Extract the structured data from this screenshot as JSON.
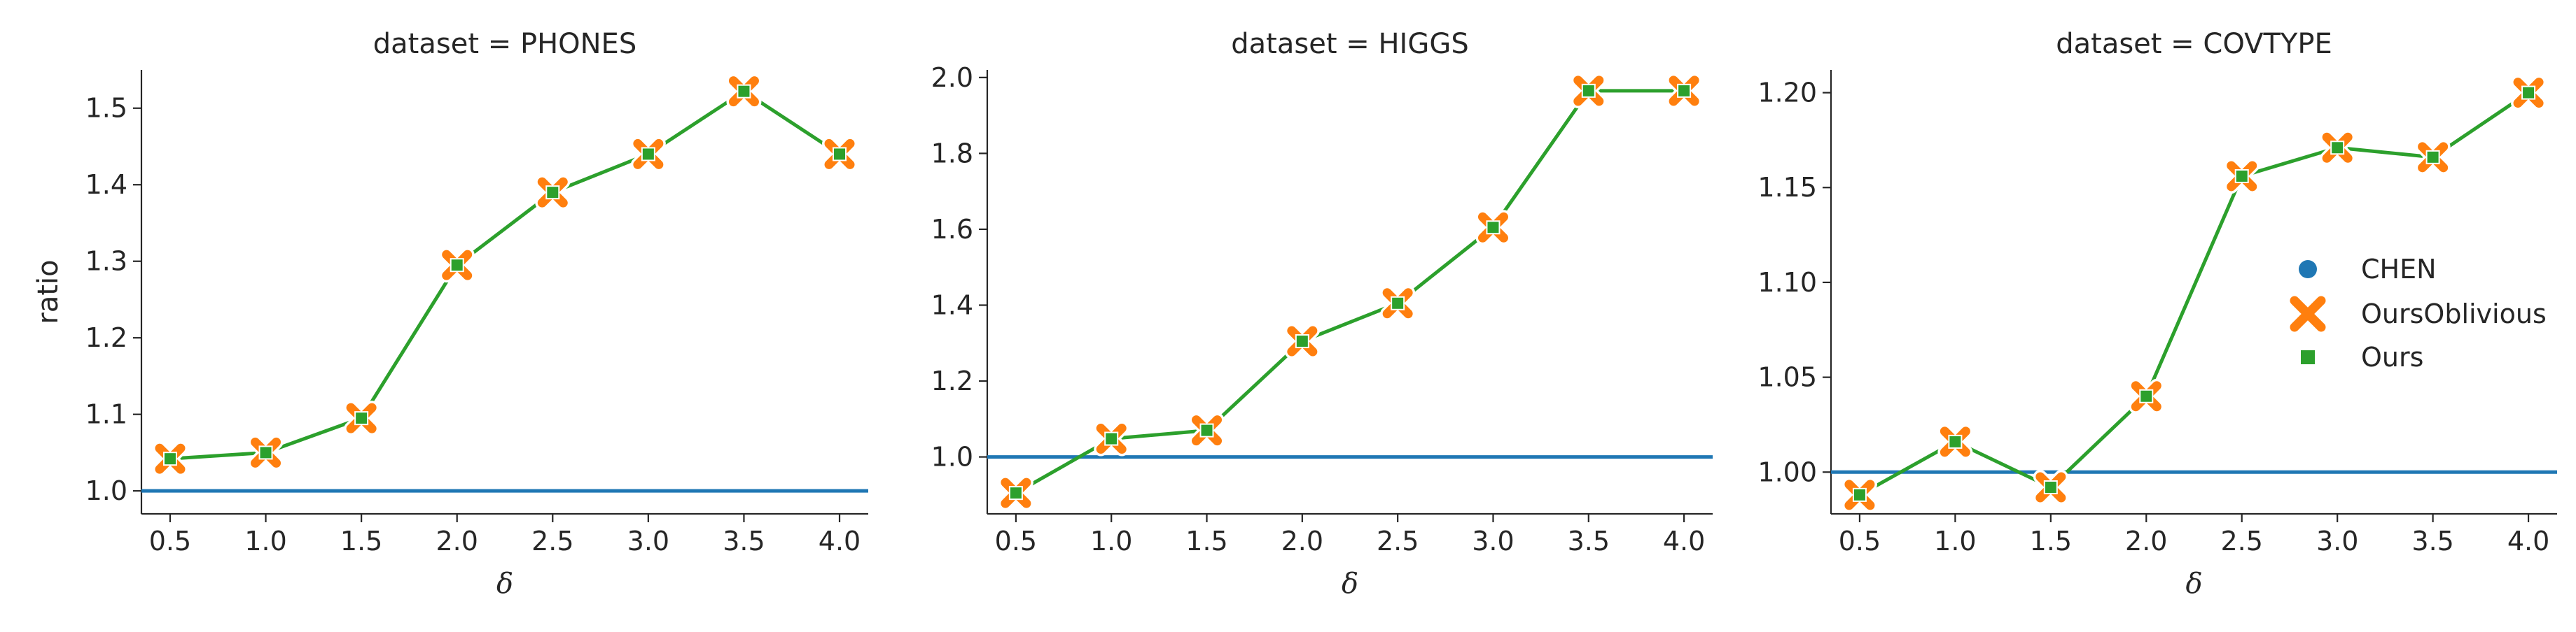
{
  "chart_data": [
    {
      "type": "line",
      "title": "dataset = PHONES",
      "xlabel": "δ",
      "ylabel": "ratio",
      "x": [
        0.5,
        1.0,
        1.5,
        2.0,
        2.5,
        3.0,
        3.5,
        4.0
      ],
      "x_tick_labels": [
        "0.5",
        "1.0",
        "1.5",
        "2.0",
        "2.5",
        "3.0",
        "3.5",
        "4.0"
      ],
      "xlim": [
        0.35,
        4.15
      ],
      "ylim": [
        0.97,
        1.55
      ],
      "y_ticks": [
        1.0,
        1.1,
        1.2,
        1.3,
        1.4,
        1.5
      ],
      "y_tick_labels": [
        "1.0",
        "1.1",
        "1.2",
        "1.3",
        "1.4",
        "1.5"
      ],
      "series": [
        {
          "name": "CHEN",
          "values": [
            1.0,
            1.0,
            1.0,
            1.0,
            1.0,
            1.0,
            1.0,
            1.0
          ],
          "color": "#1f77b4"
        },
        {
          "name": "OursOblivious",
          "values": [
            1.042,
            1.05,
            1.095,
            1.295,
            1.39,
            1.44,
            1.522,
            1.44
          ],
          "color": "#ff7f0e"
        },
        {
          "name": "Ours",
          "values": [
            1.042,
            1.05,
            1.095,
            1.295,
            1.39,
            1.44,
            1.522,
            1.44
          ],
          "color": "#2ca02c"
        }
      ],
      "grid": false
    },
    {
      "type": "line",
      "title": "dataset = HIGGS",
      "xlabel": "δ",
      "ylabel": "",
      "x": [
        0.5,
        1.0,
        1.5,
        2.0,
        2.5,
        3.0,
        3.5,
        4.0
      ],
      "x_tick_labels": [
        "0.5",
        "1.0",
        "1.5",
        "2.0",
        "2.5",
        "3.0",
        "3.5",
        "4.0"
      ],
      "xlim": [
        0.35,
        4.15
      ],
      "ylim": [
        0.85,
        2.02
      ],
      "y_ticks": [
        1.0,
        1.2,
        1.4,
        1.6,
        1.8,
        2.0
      ],
      "y_tick_labels": [
        "1.0",
        "1.2",
        "1.4",
        "1.6",
        "1.8",
        "2.0"
      ],
      "series": [
        {
          "name": "CHEN",
          "values": [
            1.0,
            1.0,
            1.0,
            1.0,
            1.0,
            1.0,
            1.0,
            1.0
          ],
          "color": "#1f77b4"
        },
        {
          "name": "OursOblivious",
          "values": [
            0.905,
            1.048,
            1.07,
            1.305,
            1.405,
            1.605,
            1.965,
            1.965
          ],
          "color": "#ff7f0e"
        },
        {
          "name": "Ours",
          "values": [
            0.905,
            1.048,
            1.07,
            1.305,
            1.405,
            1.605,
            1.965,
            1.965
          ],
          "color": "#2ca02c"
        }
      ],
      "grid": false
    },
    {
      "type": "line",
      "title": "dataset = COVTYPE",
      "xlabel": "δ",
      "ylabel": "",
      "x": [
        0.5,
        1.0,
        1.5,
        2.0,
        2.5,
        3.0,
        3.5,
        4.0
      ],
      "x_tick_labels": [
        "0.5",
        "1.0",
        "1.5",
        "2.0",
        "2.5",
        "3.0",
        "3.5",
        "4.0"
      ],
      "xlim": [
        0.35,
        4.15
      ],
      "ylim": [
        0.978,
        1.212
      ],
      "y_ticks": [
        1.0,
        1.05,
        1.1,
        1.15,
        1.2
      ],
      "y_tick_labels": [
        "1.00",
        "1.05",
        "1.10",
        "1.15",
        "1.20"
      ],
      "series": [
        {
          "name": "CHEN",
          "values": [
            1.0,
            1.0,
            1.0,
            1.0,
            1.0,
            1.0,
            1.0,
            1.0
          ],
          "color": "#1f77b4"
        },
        {
          "name": "OursOblivious",
          "values": [
            0.988,
            1.016,
            0.992,
            1.04,
            1.156,
            1.171,
            1.166,
            1.2
          ],
          "color": "#ff7f0e"
        },
        {
          "name": "Ours",
          "values": [
            0.988,
            1.016,
            0.992,
            1.04,
            1.156,
            1.171,
            1.166,
            1.2
          ],
          "color": "#2ca02c"
        }
      ],
      "grid": false
    }
  ],
  "legend": {
    "placement": "right",
    "items": [
      {
        "label": "CHEN",
        "marker": "circle",
        "color": "#1f77b4"
      },
      {
        "label": "OursOblivious",
        "marker": "x",
        "color": "#ff7f0e"
      },
      {
        "label": "Ours",
        "marker": "square",
        "color": "#2ca02c"
      }
    ]
  }
}
